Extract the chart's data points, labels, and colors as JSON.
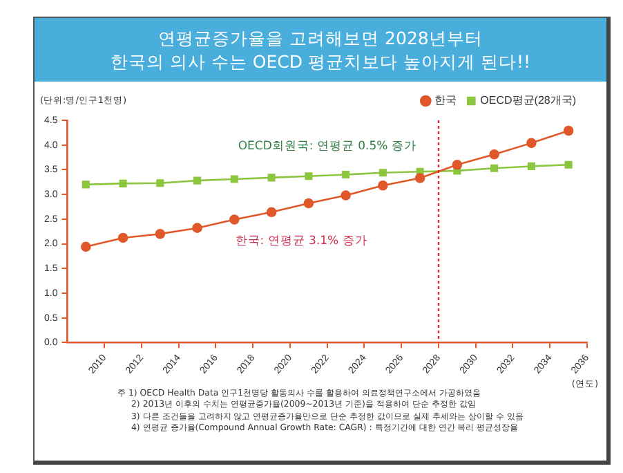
{
  "chart_data": {
    "type": "line",
    "title": "연평균증가율을 고려해보면 2028년부터\n한국의 의사 수는 OECD 평균치보다 높아지게 된다!!",
    "ylabel": "(단위:명/인구1천명)",
    "xlabel": "(연도)",
    "x": [
      2009,
      2011,
      2013,
      2015,
      2017,
      2019,
      2021,
      2023,
      2025,
      2027,
      2029,
      2031,
      2033,
      2035
    ],
    "series": [
      {
        "name": "한국",
        "color": "#e0582a",
        "marker": "circle",
        "values": [
          1.94,
          2.12,
          2.2,
          2.32,
          2.49,
          2.64,
          2.82,
          2.98,
          3.18,
          3.33,
          3.6,
          3.81,
          4.04,
          4.29
        ]
      },
      {
        "name": "OECD평균(28개국)",
        "color": "#8cc63f",
        "marker": "square",
        "values": [
          3.2,
          3.22,
          3.23,
          3.28,
          3.31,
          3.34,
          3.37,
          3.4,
          3.44,
          3.46,
          3.48,
          3.53,
          3.57,
          3.6
        ]
      }
    ],
    "xlim": [
      2008,
      2036
    ],
    "xticks": [
      2010,
      2012,
      2014,
      2016,
      2018,
      2020,
      2022,
      2024,
      2026,
      2028,
      2030,
      2032,
      2034,
      2036
    ],
    "ylim": [
      0,
      4.5
    ],
    "yticks": [
      {
        "value": 0,
        "label": "0.0"
      },
      0.5,
      {
        "value": 1,
        "label": "1.0"
      },
      1.5,
      {
        "value": 2,
        "label": "2.0"
      },
      2.5,
      {
        "value": 3,
        "label": "3.0"
      },
      3.5,
      {
        "value": 4,
        "label": "4.0"
      },
      4.5
    ],
    "ref_lines": [
      {
        "axis": "x",
        "value": 2028,
        "color": "#d9262e",
        "line_style": "dotted"
      }
    ],
    "grid": false,
    "legend": "top right",
    "line_style": "solid",
    "annotations": [
      "OECD회원국: 연평균 0.5% 증가",
      "한국: 연평균 3.1% 증가",
      "주 1) OECD Health Data 인구1천명당 활동의사 수를 활용하여 의료정책연구소에서 가공하였음",
      "2) 2013년 이후의 수치는 연평균증가율(2009~2013년 기준)을 적용하여 단순 추정한 값임",
      "3) 다른 조건들을 고려하지 않고 연평균증가율만으로 단순 추정한 값이므로 실제 추세와는 상이할 수 있음",
      "4) 연평균 증가율(Compound Annual Growth Rate: CAGR) : 특정기간에 대한 연간 복리 평균성장율"
    ]
  }
}
